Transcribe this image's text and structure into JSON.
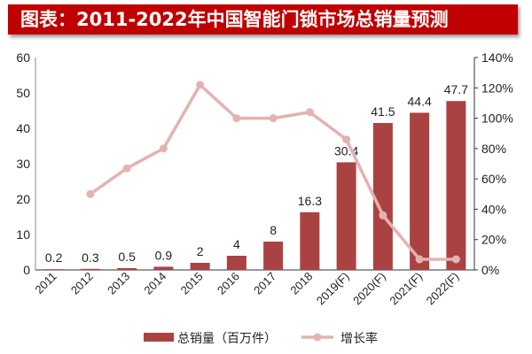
{
  "title": "图表：2011-2022年中国智能门锁市场总销量预测",
  "chart_data": {
    "type": "bar",
    "title": "图表：2011-2022年中国智能门锁市场总销量预测",
    "categories": [
      "2011",
      "2012",
      "2013",
      "2014",
      "2015",
      "2016",
      "2017",
      "2018",
      "2019(F)",
      "2020(F)",
      "2021(F)",
      "2022(F)"
    ],
    "series": [
      {
        "name": "总销量（百万件）",
        "type": "bar",
        "axis": "left",
        "color": "#ab4242",
        "values": [
          0.2,
          0.3,
          0.5,
          0.9,
          2,
          4,
          8,
          16.3,
          30.4,
          41.5,
          44.4,
          47.7
        ],
        "labels": [
          "0.2",
          "0.3",
          "0.5",
          "0.9",
          "2",
          "4",
          "8",
          "16.3",
          "30.4",
          "41.5",
          "44.4",
          "47.7"
        ]
      },
      {
        "name": "增长率",
        "type": "line",
        "axis": "right",
        "color": "#e3b3b1",
        "unit": "%",
        "values": [
          null,
          50,
          67,
          80,
          122,
          100,
          100,
          104,
          86,
          36,
          7,
          7
        ]
      }
    ],
    "ylim": [
      0,
      60
    ],
    "yticks": [
      "0",
      "10",
      "20",
      "30",
      "40",
      "50",
      "60"
    ],
    "y2lim": [
      0,
      140
    ],
    "y2ticks": [
      "0%",
      "20%",
      "40%",
      "60%",
      "80%",
      "100%",
      "120%",
      "140%"
    ],
    "grid": false,
    "legend": "bottom"
  }
}
